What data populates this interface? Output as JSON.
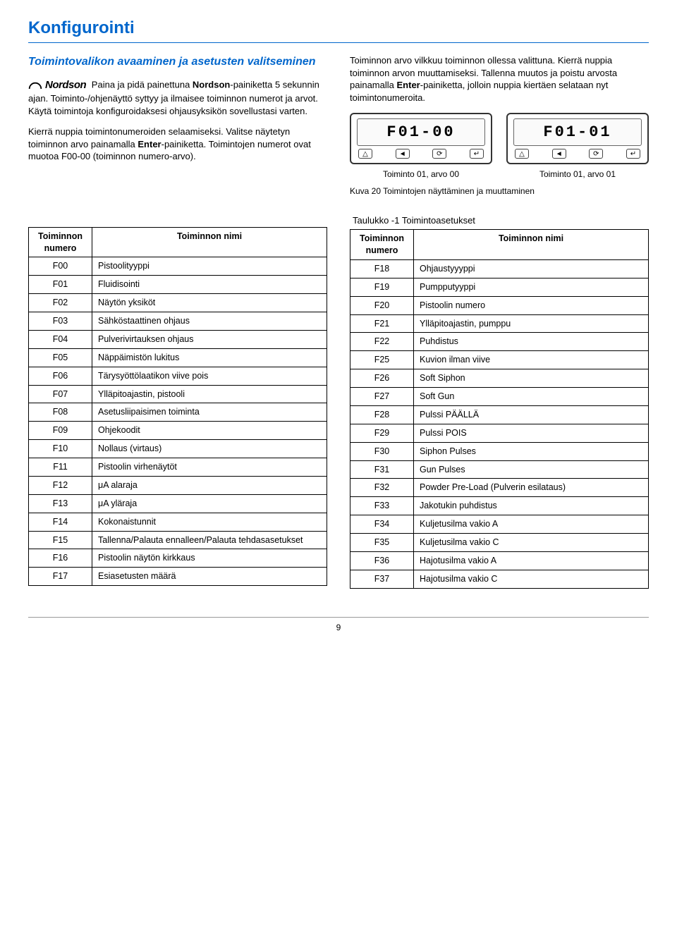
{
  "page": {
    "title": "Konfigurointi",
    "page_number": "9"
  },
  "section": {
    "subheading": "Toimintovalikon avaaminen ja asetusten valitseminen",
    "logo_name": "Nordson",
    "left_p1_a": "Paina ja pidä painettuna ",
    "left_p1_b": "-painiketta 5 sekunnin ajan. Toiminto-/ohjenäyttö syttyy ja ilmaisee toiminnon numerot ja arvot. Käytä toimintoja konfiguroidaksesi ohjausyksikön sovellustasi varten.",
    "left_p2_a": "Kierrä nuppia toimintonumeroiden selaamiseksi. Valitse näytetyn toiminnon arvo painamalla ",
    "left_p2_enter": "Enter",
    "left_p2_b": "-painiketta. Toimintojen numerot ovat muotoa F00-00 (toiminnon numero-arvo).",
    "right_p1_a": "Toiminnon arvo vilkkuu toiminnon ollessa valittuna. Kierrä nuppia toiminnon arvon muuttamiseksi. Tallenna muutos ja poistu arvosta painamalla ",
    "right_p1_enter": "Enter",
    "right_p1_b": "-painiketta, jolloin nuppia kiertäen selataan nyt toimintonumeroita.",
    "display1_text": "F01-00",
    "display1_label": "Toiminto 01, arvo 00",
    "display2_text": "F01-01",
    "display2_label": "Toiminto 01, arvo 01",
    "figure_caption": "Kuva 20   Toimintojen näyttäminen ja muuttaminen"
  },
  "tables": {
    "caption": "Taulukko -1  Toimintoasetukset",
    "header_num": "Toiminnon numero",
    "header_name": "Toiminnon nimi",
    "left_rows": [
      {
        "n": "F00",
        "v": "Pistoolityyppi"
      },
      {
        "n": "F01",
        "v": "Fluidisointi"
      },
      {
        "n": "F02",
        "v": "Näytön yksiköt"
      },
      {
        "n": "F03",
        "v": "Sähköstaattinen ohjaus"
      },
      {
        "n": "F04",
        "v": "Pulverivirtauksen ohjaus"
      },
      {
        "n": "F05",
        "v": "Näppäimistön lukitus"
      },
      {
        "n": "F06",
        "v": "Tärysyöttölaatikon viive pois"
      },
      {
        "n": "F07",
        "v": "Ylläpitoajastin, pistooli"
      },
      {
        "n": "F08",
        "v": "Asetusliipaisimen toiminta"
      },
      {
        "n": "F09",
        "v": "Ohjekoodit"
      },
      {
        "n": "F10",
        "v": "Nollaus (virtaus)"
      },
      {
        "n": "F11",
        "v": "Pistoolin virhenäytöt"
      },
      {
        "n": "F12",
        "v": "μA alaraja"
      },
      {
        "n": "F13",
        "v": "μA yläraja"
      },
      {
        "n": "F14",
        "v": "Kokonaistunnit"
      },
      {
        "n": "F15",
        "v": "Tallenna/Palauta ennalleen/Palauta tehdasasetukset"
      },
      {
        "n": "F16",
        "v": "Pistoolin näytön kirkkaus"
      },
      {
        "n": "F17",
        "v": "Esiasetusten määrä"
      }
    ],
    "right_rows": [
      {
        "n": "F18",
        "v": "Ohjaustyyyppi"
      },
      {
        "n": "F19",
        "v": "Pumpputyyppi"
      },
      {
        "n": "F20",
        "v": "Pistoolin numero"
      },
      {
        "n": "F21",
        "v": "Ylläpitoajastin, pumppu"
      },
      {
        "n": "F22",
        "v": "Puhdistus"
      },
      {
        "n": "F25",
        "v": "Kuvion ilman viive"
      },
      {
        "n": "F26",
        "v": "Soft Siphon"
      },
      {
        "n": "F27",
        "v": "Soft Gun"
      },
      {
        "n": "F28",
        "v": "Pulssi PÄÄLLÄ"
      },
      {
        "n": "F29",
        "v": "Pulssi POIS"
      },
      {
        "n": "F30",
        "v": "Siphon Pulses"
      },
      {
        "n": "F31",
        "v": "Gun Pulses"
      },
      {
        "n": "F32",
        "v": "Powder Pre-Load (Pulverin esilataus)"
      },
      {
        "n": "F33",
        "v": "Jakotukin puhdistus"
      },
      {
        "n": "F34",
        "v": "Kuljetusilma vakio A"
      },
      {
        "n": "F35",
        "v": "Kuljetusilma vakio C"
      },
      {
        "n": "F36",
        "v": "Hajotusilma vakio A"
      },
      {
        "n": "F37",
        "v": "Hajotusilma vakio C"
      }
    ]
  }
}
